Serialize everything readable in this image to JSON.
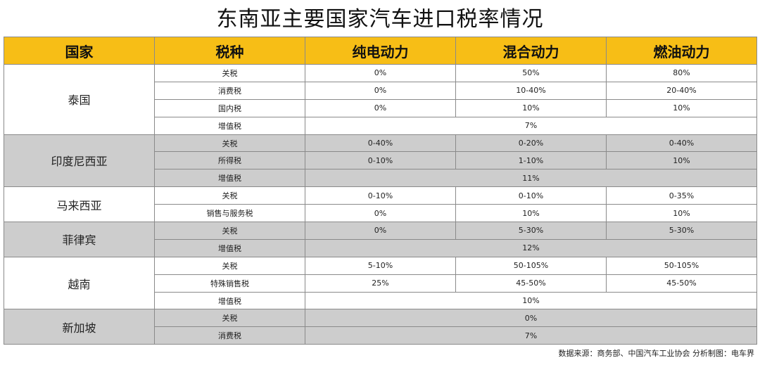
{
  "title": "东南亚主要国家汽车进口税率情况",
  "headers": [
    "国家",
    "税种",
    "纯电动力",
    "混合动力",
    "燃油动力"
  ],
  "countries": [
    {
      "name": "泰国",
      "shade": "w",
      "rows": [
        {
          "tax": "关税",
          "bev": "0%",
          "hev": "50%",
          "ice": "80%"
        },
        {
          "tax": "消费税",
          "bev": "0%",
          "hev": "10-40%",
          "ice": "20-40%"
        },
        {
          "tax": "国内税",
          "bev": "0%",
          "hev": "10%",
          "ice": "10%"
        },
        {
          "tax": "增值税",
          "merged": "7%"
        }
      ]
    },
    {
      "name": "印度尼西亚",
      "shade": "g",
      "rows": [
        {
          "tax": "关税",
          "bev": "0-40%",
          "hev": "0-20%",
          "ice": "0-40%"
        },
        {
          "tax": "所得税",
          "bev": "0-10%",
          "hev": "1-10%",
          "ice": "10%"
        },
        {
          "tax": "增值税",
          "merged": "11%"
        }
      ]
    },
    {
      "name": "马来西亚",
      "shade": "w",
      "rows": [
        {
          "tax": "关税",
          "bev": "0-10%",
          "hev": "0-10%",
          "ice": "0-35%"
        },
        {
          "tax": "销售与服务税",
          "bev": "0%",
          "hev": "10%",
          "ice": "10%"
        }
      ]
    },
    {
      "name": "菲律宾",
      "shade": "g",
      "rows": [
        {
          "tax": "关税",
          "bev": "0%",
          "hev": "5-30%",
          "ice": "5-30%"
        },
        {
          "tax": "增值税",
          "merged": "12%"
        }
      ]
    },
    {
      "name": "越南",
      "shade": "w",
      "rows": [
        {
          "tax": "关税",
          "bev": "5-10%",
          "hev": "50-105%",
          "ice": "50-105%"
        },
        {
          "tax": "特殊销售税",
          "bev": "25%",
          "hev": "45-50%",
          "ice": "45-50%"
        },
        {
          "tax": "增值税",
          "merged": "10%"
        }
      ]
    },
    {
      "name": "新加坡",
      "shade": "g",
      "rows": [
        {
          "tax": "关税",
          "merged": "0%"
        },
        {
          "tax": "消费税",
          "merged": "7%"
        }
      ]
    }
  ],
  "source": "数据来源：商务部、中国汽车工业协会   分析制图：电车界"
}
